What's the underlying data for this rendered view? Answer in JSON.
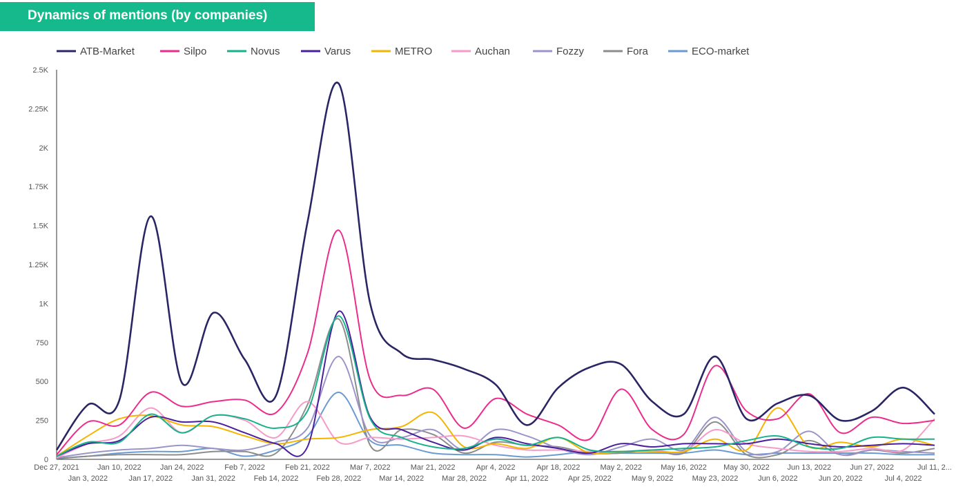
{
  "header": {
    "title": "Dynamics of mentions (by companies)"
  },
  "chart_data": {
    "type": "line",
    "title": "Dynamics of mentions (by companies)",
    "xlabel": "",
    "ylabel": "",
    "ylim": [
      0,
      2500
    ],
    "yticks": [
      "0",
      "250",
      "500",
      "750",
      "1K",
      "1.25K",
      "1.5K",
      "1.75K",
      "2K",
      "2.25K",
      "2.5K"
    ],
    "ytick_values": [
      0,
      250,
      500,
      750,
      1000,
      1250,
      1500,
      1750,
      2000,
      2250,
      2500
    ],
    "legend_position": "top",
    "grid": false,
    "x": [
      "Dec 27, 2021",
      "Jan 3, 2022",
      "Jan 10, 2022",
      "Jan 17, 2022",
      "Jan 24, 2022",
      "Jan 31, 2022",
      "Feb 7, 2022",
      "Feb 14, 2022",
      "Feb 21, 2022",
      "Feb 28, 2022",
      "Mar 7, 2022",
      "Mar 14, 2022",
      "Mar 21, 2022",
      "Mar 28, 2022",
      "Apr 4, 2022",
      "Apr 11, 2022",
      "Apr 18, 2022",
      "Apr 25, 2022",
      "May 2, 2022",
      "May 9, 2022",
      "May 16, 2022",
      "May 23, 2022",
      "May 30, 2022",
      "Jun 6, 2022",
      "Jun 13, 2022",
      "Jun 20, 2022",
      "Jun 27, 2022",
      "Jul 4, 2022",
      "Jul 11, 2..."
    ],
    "series": [
      {
        "name": "ATB-Market",
        "color": "#2a2564",
        "values": [
          60,
          350,
          380,
          1560,
          490,
          940,
          640,
          410,
          1520,
          2410,
          1000,
          680,
          640,
          580,
          480,
          220,
          460,
          590,
          610,
          370,
          290,
          660,
          260,
          360,
          410,
          250,
          310,
          460,
          290
        ]
      },
      {
        "name": "Silpo",
        "color": "#ec2b8c",
        "values": [
          30,
          240,
          220,
          430,
          340,
          370,
          380,
          300,
          680,
          1470,
          510,
          410,
          450,
          200,
          390,
          290,
          220,
          130,
          450,
          190,
          160,
          600,
          310,
          260,
          420,
          170,
          270,
          230,
          250
        ]
      },
      {
        "name": "Novus",
        "color": "#17b28c",
        "values": [
          20,
          110,
          110,
          290,
          170,
          280,
          260,
          200,
          310,
          920,
          260,
          140,
          80,
          70,
          130,
          90,
          140,
          60,
          50,
          60,
          70,
          80,
          120,
          150,
          80,
          70,
          140,
          130,
          130
        ]
      },
      {
        "name": "Varus",
        "color": "#4a1f9c",
        "values": [
          20,
          100,
          120,
          270,
          240,
          240,
          170,
          100,
          80,
          950,
          270,
          190,
          110,
          60,
          140,
          100,
          70,
          40,
          100,
          80,
          100,
          100,
          100,
          130,
          100,
          80,
          90,
          100,
          90
        ]
      },
      {
        "name": "METRO",
        "color": "#f5b400",
        "values": [
          20,
          150,
          260,
          280,
          220,
          210,
          150,
          100,
          130,
          140,
          190,
          210,
          300,
          80,
          100,
          70,
          140,
          40,
          50,
          50,
          50,
          130,
          60,
          330,
          80,
          110,
          80,
          130,
          90
        ]
      },
      {
        "name": "Auchan",
        "color": "#f79ac8",
        "values": [
          10,
          100,
          150,
          330,
          170,
          280,
          250,
          140,
          370,
          110,
          140,
          130,
          140,
          150,
          90,
          60,
          60,
          50,
          50,
          60,
          50,
          190,
          100,
          70,
          50,
          50,
          70,
          60,
          260
        ]
      },
      {
        "name": "Fozzy",
        "color": "#9a94c8",
        "values": [
          10,
          40,
          60,
          70,
          90,
          70,
          60,
          110,
          200,
          660,
          150,
          140,
          190,
          60,
          190,
          150,
          70,
          30,
          80,
          130,
          60,
          270,
          50,
          50,
          180,
          30,
          60,
          50,
          40
        ]
      },
      {
        "name": "Fora",
        "color": "#8c8c8c",
        "values": [
          5,
          20,
          30,
          30,
          30,
          50,
          50,
          40,
          350,
          900,
          90,
          190,
          160,
          40,
          110,
          90,
          80,
          40,
          40,
          60,
          40,
          240,
          30,
          30,
          120,
          30,
          60,
          40,
          70
        ]
      },
      {
        "name": "ECO-market",
        "color": "#6a9ad4",
        "values": [
          5,
          20,
          40,
          50,
          50,
          70,
          20,
          60,
          150,
          430,
          120,
          90,
          40,
          30,
          30,
          15,
          30,
          50,
          40,
          40,
          40,
          60,
          30,
          40,
          40,
          40,
          40,
          30,
          30
        ]
      }
    ]
  }
}
